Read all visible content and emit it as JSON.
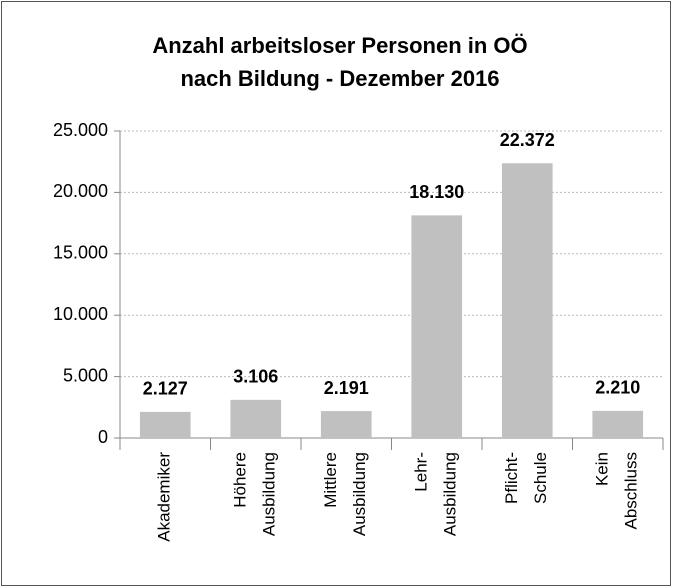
{
  "chart_data": {
    "type": "bar",
    "title": "Anzahl arbeitsloser Personen in OÖ\nnach Bildung - Dezember 2016",
    "categories": [
      "Akademiker",
      "Höhere\nAusbildung",
      "Mittlere\nAusbildung",
      "Lehr-\nAusbildung",
      "Pflicht-\nSchule",
      "Kein\nAbschluss"
    ],
    "values": [
      2127,
      3106,
      2191,
      18130,
      22372,
      2210
    ],
    "value_labels": [
      "2.127",
      "3.106",
      "2.191",
      "18.130",
      "22.372",
      "2.210"
    ],
    "color": "#c0c0c0",
    "ylim": [
      0,
      25000
    ],
    "yticks": [
      0,
      {
        "value": 5000,
        "label": "5.000"
      },
      {
        "value": 10000,
        "label": "10.000"
      },
      {
        "value": 15000,
        "label": "15.000"
      },
      {
        "value": 20000,
        "label": "20.000"
      },
      {
        "value": 25000,
        "label": "25.000"
      }
    ],
    "grid": true
  }
}
